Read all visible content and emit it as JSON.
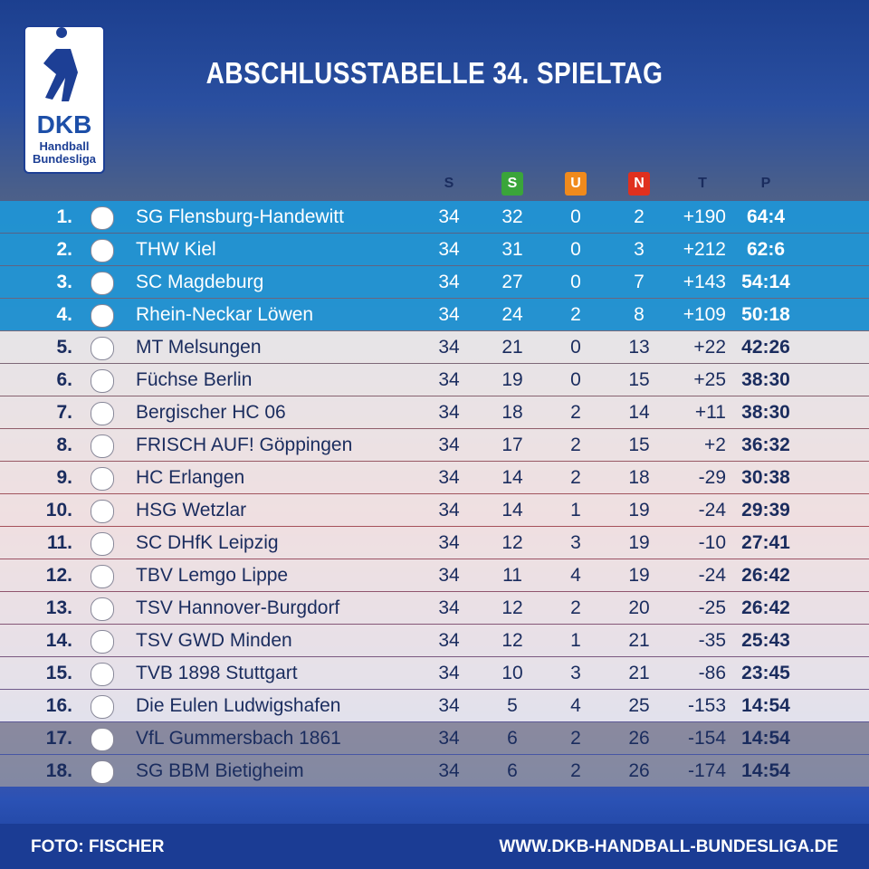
{
  "logo": {
    "brand": "DKB",
    "line1": "Handball",
    "line2": "Bundesliga"
  },
  "header": {
    "title": "ABSCHLUSSTABELLE 34. SPIELTAG"
  },
  "table": {
    "columns": [
      "S",
      "S",
      "U",
      "N",
      "T",
      "P"
    ],
    "rows": [
      [
        "1.",
        "SG Flensburg-Handewitt",
        "34",
        "32",
        "0",
        "2",
        "+190",
        "64:4"
      ],
      [
        "2.",
        "THW Kiel",
        "34",
        "31",
        "0",
        "3",
        "+212",
        "62:6"
      ],
      [
        "3.",
        "SC Magdeburg",
        "34",
        "27",
        "0",
        "7",
        "+143",
        "54:14"
      ],
      [
        "4.",
        "Rhein-Neckar Löwen",
        "34",
        "24",
        "2",
        "8",
        "+109",
        "50:18"
      ],
      [
        "5.",
        "MT Melsungen",
        "34",
        "21",
        "0",
        "13",
        "+22",
        "42:26"
      ],
      [
        "6.",
        "Füchse Berlin",
        "34",
        "19",
        "0",
        "15",
        "+25",
        "38:30"
      ],
      [
        "7.",
        "Bergischer HC 06",
        "34",
        "18",
        "2",
        "14",
        "+11",
        "38:30"
      ],
      [
        "8.",
        "FRISCH AUF! Göppingen",
        "34",
        "17",
        "2",
        "15",
        "+2",
        "36:32"
      ],
      [
        "9.",
        "HC Erlangen",
        "34",
        "14",
        "2",
        "18",
        "-29",
        "30:38"
      ],
      [
        "10.",
        "HSG Wetzlar",
        "34",
        "14",
        "1",
        "19",
        "-24",
        "29:39"
      ],
      [
        "11.",
        "SC DHfK Leipzig",
        "34",
        "12",
        "3",
        "19",
        "-10",
        "27:41"
      ],
      [
        "12.",
        "TBV Lemgo Lippe",
        "34",
        "11",
        "4",
        "19",
        "-24",
        "26:42"
      ],
      [
        "13.",
        "TSV Hannover-Burgdorf",
        "34",
        "12",
        "2",
        "20",
        "-25",
        "26:42"
      ],
      [
        "14.",
        "TSV GWD Minden",
        "34",
        "12",
        "1",
        "21",
        "-35",
        "25:43"
      ],
      [
        "15.",
        "TVB 1898 Stuttgart",
        "34",
        "10",
        "3",
        "21",
        "-86",
        "23:45"
      ],
      [
        "16.",
        "Die Eulen Ludwigshafen",
        "34",
        "5",
        "4",
        "25",
        "-153",
        "14:54"
      ],
      [
        "17.",
        "VfL Gummersbach 1861",
        "34",
        "6",
        "2",
        "26",
        "-154",
        "14:54"
      ],
      [
        "18.",
        "SG BBM Bietigheim",
        "34",
        "6",
        "2",
        "26",
        "-174",
        "14:54"
      ]
    ]
  },
  "footer": {
    "credit": "FOTO: FISCHER",
    "url": "WWW.DKB-HANDBALL-BUNDESLIGA.DE"
  }
}
